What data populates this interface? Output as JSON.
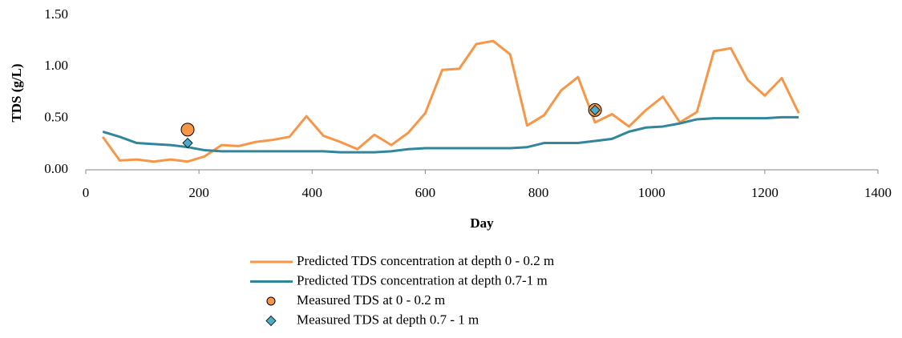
{
  "chart_data": {
    "type": "line",
    "x_label": "Day",
    "y_label": "TDS (g/L)",
    "x": [
      30,
      60,
      90,
      120,
      150,
      180,
      210,
      240,
      270,
      300,
      330,
      360,
      390,
      420,
      450,
      480,
      510,
      540,
      570,
      600,
      630,
      660,
      690,
      720,
      750,
      780,
      810,
      840,
      870,
      900,
      930,
      960,
      990,
      1020,
      1050,
      1080,
      1110,
      1140,
      1170,
      1200,
      1230,
      1260
    ],
    "series": [
      {
        "name": "Predicted TDS concentration at depth 0 - 0.2 m",
        "color": "#f79646",
        "mark": "line",
        "values": [
          0.32,
          0.09,
          0.1,
          0.08,
          0.1,
          0.08,
          0.13,
          0.24,
          0.23,
          0.27,
          0.29,
          0.32,
          0.52,
          0.33,
          0.27,
          0.2,
          0.34,
          0.24,
          0.36,
          0.55,
          0.97,
          0.98,
          1.22,
          1.25,
          1.12,
          0.43,
          0.53,
          0.77,
          0.9,
          0.46,
          0.54,
          0.42,
          0.58,
          0.71,
          0.46,
          0.56,
          1.15,
          1.18,
          0.87,
          0.72,
          0.89,
          0.55
        ]
      },
      {
        "name": "Predicted TDS concentration at depth 0.7-1 m",
        "color": "#31859c",
        "mark": "line",
        "values": [
          0.37,
          0.32,
          0.26,
          0.25,
          0.24,
          0.22,
          0.19,
          0.18,
          0.18,
          0.18,
          0.18,
          0.18,
          0.18,
          0.18,
          0.17,
          0.17,
          0.17,
          0.18,
          0.2,
          0.21,
          0.21,
          0.21,
          0.21,
          0.21,
          0.21,
          0.22,
          0.26,
          0.26,
          0.26,
          0.28,
          0.3,
          0.37,
          0.41,
          0.42,
          0.45,
          0.49,
          0.5,
          0.5,
          0.5,
          0.5,
          0.51,
          0.51
        ]
      },
      {
        "name": "Measured TDS at 0 - 0.2  m",
        "color": "#f79646",
        "mark": "circle",
        "x": [
          180,
          900
        ],
        "values": [
          0.39,
          0.58
        ]
      },
      {
        "name": "Measured TDS at depth 0.7 - 1 m",
        "color": "#4bacc6",
        "mark": "diamond",
        "x": [
          180,
          900
        ],
        "values": [
          0.26,
          0.58
        ]
      }
    ],
    "xlim": [
      0,
      1400
    ],
    "xticks": [
      0,
      200,
      400,
      600,
      800,
      1000,
      1200,
      1400
    ],
    "ylim": [
      0,
      1.5
    ],
    "yticks": [
      {
        "value": 0,
        "label": "0.00"
      },
      {
        "value": 0.5,
        "label": "0.50"
      },
      {
        "value": 1,
        "label": "1.00"
      },
      {
        "value": 1.5,
        "label": "1.50"
      }
    ],
    "legend": "bottom"
  }
}
